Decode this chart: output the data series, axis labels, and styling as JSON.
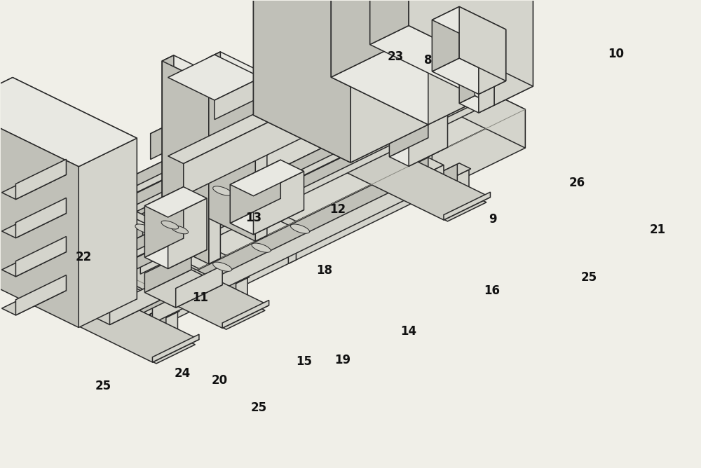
{
  "bg_color": "#f0efe8",
  "line_color": "#2a2a2a",
  "face_light": "#e8e8e2",
  "face_mid": "#d0d0c8",
  "face_dark": "#b8b8b0",
  "face_darker": "#a8a8a0",
  "label_fontsize": 12,
  "labels": [
    [
      "8",
      580,
      68
    ],
    [
      "10",
      870,
      58
    ],
    [
      "23",
      530,
      62
    ],
    [
      "26",
      810,
      248
    ],
    [
      "9",
      680,
      302
    ],
    [
      "21",
      935,
      318
    ],
    [
      "22",
      48,
      358
    ],
    [
      "13",
      310,
      300
    ],
    [
      "12",
      440,
      288
    ],
    [
      "18",
      420,
      378
    ],
    [
      "11",
      228,
      418
    ],
    [
      "16",
      678,
      408
    ],
    [
      "25",
      828,
      388
    ],
    [
      "14",
      550,
      468
    ],
    [
      "19",
      448,
      510
    ],
    [
      "15",
      388,
      512
    ],
    [
      "20",
      258,
      540
    ],
    [
      "24",
      200,
      530
    ],
    [
      "25",
      78,
      548
    ],
    [
      "25",
      318,
      580
    ]
  ]
}
